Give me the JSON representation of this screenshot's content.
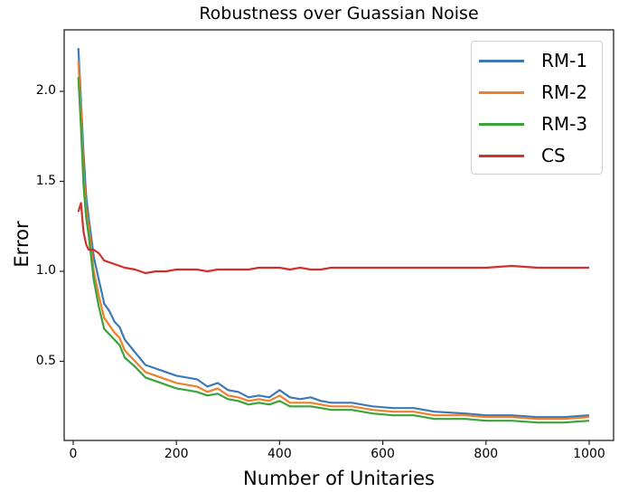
{
  "chart_data": {
    "type": "line",
    "title": "Robustness over Guassian Noise",
    "xlabel": "Number of Unitaries",
    "ylabel": "Error",
    "xlim": [
      -30,
      1040
    ],
    "ylim": [
      0.06,
      2.34
    ],
    "xticks": [
      0,
      200,
      400,
      600,
      800,
      1000
    ],
    "yticks": [
      0.5,
      1.0,
      1.5,
      2.0
    ],
    "xtick_labels": [
      "0",
      "200",
      "400",
      "600",
      "800",
      "1000"
    ],
    "ytick_labels": [
      "0.5",
      "1.0",
      "1.5",
      "2.0"
    ],
    "grid": false,
    "legend_position": "upper right",
    "x": [
      10,
      15,
      20,
      25,
      30,
      40,
      50,
      60,
      70,
      80,
      90,
      100,
      120,
      140,
      160,
      180,
      200,
      220,
      240,
      260,
      280,
      300,
      320,
      340,
      360,
      380,
      400,
      420,
      440,
      460,
      480,
      500,
      540,
      580,
      620,
      660,
      700,
      760,
      800,
      850,
      900,
      950,
      1000
    ],
    "series": [
      {
        "name": "RM-1",
        "color": "#3b7ab5",
        "values": [
          2.24,
          1.95,
          1.66,
          1.42,
          1.3,
          1.08,
          0.95,
          0.82,
          0.78,
          0.72,
          0.69,
          0.62,
          0.55,
          0.48,
          0.46,
          0.44,
          0.42,
          0.41,
          0.4,
          0.36,
          0.38,
          0.34,
          0.33,
          0.3,
          0.31,
          0.3,
          0.34,
          0.3,
          0.29,
          0.3,
          0.28,
          0.27,
          0.27,
          0.25,
          0.24,
          0.24,
          0.22,
          0.21,
          0.2,
          0.2,
          0.19,
          0.19,
          0.2
        ]
      },
      {
        "name": "RM-2",
        "color": "#f07f2a",
        "values": [
          2.17,
          1.9,
          1.55,
          1.35,
          1.25,
          1.0,
          0.86,
          0.74,
          0.7,
          0.66,
          0.63,
          0.56,
          0.5,
          0.44,
          0.42,
          0.4,
          0.38,
          0.37,
          0.36,
          0.33,
          0.35,
          0.31,
          0.3,
          0.28,
          0.29,
          0.28,
          0.31,
          0.27,
          0.27,
          0.27,
          0.26,
          0.25,
          0.25,
          0.23,
          0.22,
          0.22,
          0.2,
          0.2,
          0.19,
          0.19,
          0.18,
          0.18,
          0.19
        ]
      },
      {
        "name": "RM-3",
        "color": "#3aa33a",
        "values": [
          2.08,
          1.8,
          1.48,
          1.3,
          1.2,
          0.95,
          0.8,
          0.68,
          0.65,
          0.62,
          0.59,
          0.52,
          0.47,
          0.41,
          0.39,
          0.37,
          0.35,
          0.34,
          0.33,
          0.31,
          0.32,
          0.29,
          0.28,
          0.26,
          0.27,
          0.26,
          0.28,
          0.25,
          0.25,
          0.25,
          0.24,
          0.23,
          0.23,
          0.21,
          0.2,
          0.2,
          0.18,
          0.18,
          0.17,
          0.17,
          0.16,
          0.16,
          0.17
        ]
      },
      {
        "name": "CS",
        "color": "#d0312d",
        "values": [
          1.33,
          1.38,
          1.22,
          1.15,
          1.12,
          1.12,
          1.1,
          1.06,
          1.05,
          1.04,
          1.03,
          1.02,
          1.01,
          0.99,
          1.0,
          1.0,
          1.01,
          1.01,
          1.01,
          1.0,
          1.01,
          1.01,
          1.01,
          1.01,
          1.02,
          1.02,
          1.02,
          1.01,
          1.02,
          1.01,
          1.01,
          1.02,
          1.02,
          1.02,
          1.02,
          1.02,
          1.02,
          1.02,
          1.02,
          1.03,
          1.02,
          1.02,
          1.02
        ]
      }
    ]
  },
  "legend": {
    "items": [
      {
        "label": "RM-1",
        "color": "#3b7ab5"
      },
      {
        "label": "RM-2",
        "color": "#f07f2a"
      },
      {
        "label": "RM-3",
        "color": "#3aa33a"
      },
      {
        "label": "CS",
        "color": "#d0312d"
      }
    ]
  }
}
